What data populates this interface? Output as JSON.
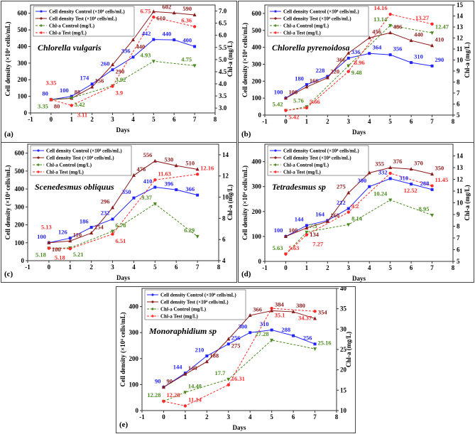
{
  "legend": {
    "cell_control": "Cell density Control (×10⁴ cells/mL)",
    "cell_test": "Cell density Test (×10⁴ cells/mL)",
    "chl_control": "Chl-a Control (mg/L)",
    "chl_test": "Chl-a Test (mg/L)"
  },
  "colors": {
    "cell_control": "#2323ff",
    "cell_test": "#8b1a1a",
    "chl_control": "#4b8a1e",
    "chl_test": "#ff2a2a"
  },
  "chart_data": [
    {
      "panel": "(a)",
      "title": "Chlorella vulgaris",
      "type": "line",
      "xlabel": "Days",
      "ylabel": "Cell density (×10⁴ cells/mL)",
      "y2label": "Chl-a (mg/L)",
      "xlim": [
        -1,
        8
      ],
      "ylim": [
        0,
        650
      ],
      "ystep": 100,
      "y2lim": [
        2.8,
        7.25
      ],
      "y2ticks": [
        3.0,
        3.5,
        4.0,
        4.5,
        5.0,
        5.5,
        6.0,
        6.5,
        7.0
      ],
      "y2dec": 1,
      "cell_days": [
        0,
        1,
        2,
        3,
        4,
        5,
        6,
        7
      ],
      "chl_days": [
        0,
        1,
        3,
        5,
        7
      ],
      "cell_control": [
        80,
        100,
        174,
        260,
        336,
        442,
        440,
        400
      ],
      "cell_test": [
        80,
        88,
        156,
        290,
        440,
        610,
        602,
        590
      ],
      "chl_control": [
        3.35,
        3.42,
        3.92,
        4.93,
        4.75
      ],
      "chl_test": [
        3.35,
        3.11,
        3.9,
        6.75,
        6.36
      ]
    },
    {
      "panel": "(b)",
      "title": "Chlorella pyrenoidosa",
      "type": "line",
      "xlabel": "Days",
      "ylabel": "Cell density (×10⁴ cells/mL)",
      "y2label": "Chl-a (mg/L)",
      "xlim": [
        -1,
        8
      ],
      "ylim": [
        0,
        650
      ],
      "ystep": 100,
      "y2lim": [
        5,
        15
      ],
      "y2ticks": [
        5,
        6,
        7,
        8,
        9,
        10,
        11,
        12,
        13,
        14,
        15
      ],
      "y2dec": 0,
      "cell_days": [
        0,
        1,
        2,
        3,
        4,
        5,
        6,
        7
      ],
      "chl_days": [
        0,
        1,
        3,
        5,
        7
      ],
      "cell_control": [
        100,
        180,
        228,
        336,
        364,
        356,
        310,
        290
      ],
      "cell_test": [
        100,
        166,
        220,
        366,
        456,
        486,
        440,
        410
      ],
      "chl_control": [
        5.42,
        5.76,
        9.48,
        13.14,
        12.47
      ],
      "chl_test": [
        5.42,
        5.66,
        8.96,
        14.16,
        13.27
      ]
    },
    {
      "panel": "(c)",
      "title": "Scenedesmus obliquus",
      "type": "line",
      "xlabel": "Days",
      "ylabel": "Cell density (×10⁴ cells/mL)",
      "y2label": "Chl-a (mg/L)",
      "xlim": [
        -1,
        8
      ],
      "ylim": [
        0,
        650
      ],
      "ystep": 100,
      "y2lim": [
        4,
        15
      ],
      "y2ticks": [
        4,
        6,
        8,
        10,
        12,
        14
      ],
      "y2dec": 0,
      "cell_days": [
        0,
        1,
        2,
        3,
        4,
        5,
        6,
        7
      ],
      "chl_days": [
        0,
        1,
        3,
        5,
        7
      ],
      "cell_control": [
        100,
        126,
        186,
        232,
        350,
        410,
        396,
        366
      ],
      "cell_test": [
        100,
        110,
        154,
        296,
        476,
        556,
        530,
        510
      ],
      "chl_control": [
        5.18,
        5.21,
        6.78,
        9.37,
        6.29
      ],
      "chl_test": [
        5.18,
        5.13,
        6.51,
        11.63,
        12.16
      ]
    },
    {
      "panel": "(d)",
      "title": "Tetradesmus sp",
      "type": "line",
      "xlabel": "Days",
      "ylabel": "Cell density (×10⁴ cells/mL)",
      "y2label": "Chl-a (mg/L)",
      "xlim": [
        -1,
        8
      ],
      "ylim": [
        0,
        470
      ],
      "ystep": 100,
      "y2lim": [
        5,
        15
      ],
      "y2ticks": [
        5,
        6,
        7,
        8,
        9,
        10,
        11,
        12,
        13,
        14
      ],
      "y2dec": 0,
      "cell_days": [
        0,
        1,
        2,
        3,
        4,
        5,
        6,
        7
      ],
      "chl_days": [
        0,
        1,
        3,
        5,
        7
      ],
      "cell_control": [
        100,
        144,
        164,
        212,
        300,
        332,
        310,
        288
      ],
      "cell_test": [
        100,
        134,
        160,
        275,
        355,
        376,
        370,
        350
      ],
      "chl_control": [
        5.63,
        7.5,
        8.14,
        10.24,
        8.95
      ],
      "chl_test": [
        5.63,
        7.27,
        9.2,
        12.52,
        11.45
      ]
    },
    {
      "panel": "(e)",
      "title": "Monoraphidium sp",
      "type": "line",
      "xlabel": "Days",
      "ylabel": "Cell density (×10⁴ cells/mL)",
      "y2label": "Chl-a (mg/L)",
      "xlim": [
        -1,
        8
      ],
      "ylim": [
        0,
        470
      ],
      "ystep": 100,
      "y2lim": [
        10,
        40
      ],
      "y2ticks": [
        10,
        15,
        20,
        25,
        30,
        35,
        40
      ],
      "y2dec": 0,
      "cell_days": [
        0,
        1,
        2,
        3,
        4,
        5,
        6,
        7
      ],
      "chl_days": [
        0,
        1,
        3,
        5,
        7
      ],
      "cell_control": [
        90,
        144,
        210,
        256,
        300,
        310,
        288,
        256
      ],
      "cell_test": [
        90,
        140,
        188,
        275,
        366,
        384,
        380,
        354
      ],
      "chl_control": [
        12.28,
        14.48,
        17.7,
        27.28,
        25.16
      ],
      "chl_test": [
        12.28,
        11.14,
        16.31,
        35.1,
        34.37
      ]
    }
  ]
}
